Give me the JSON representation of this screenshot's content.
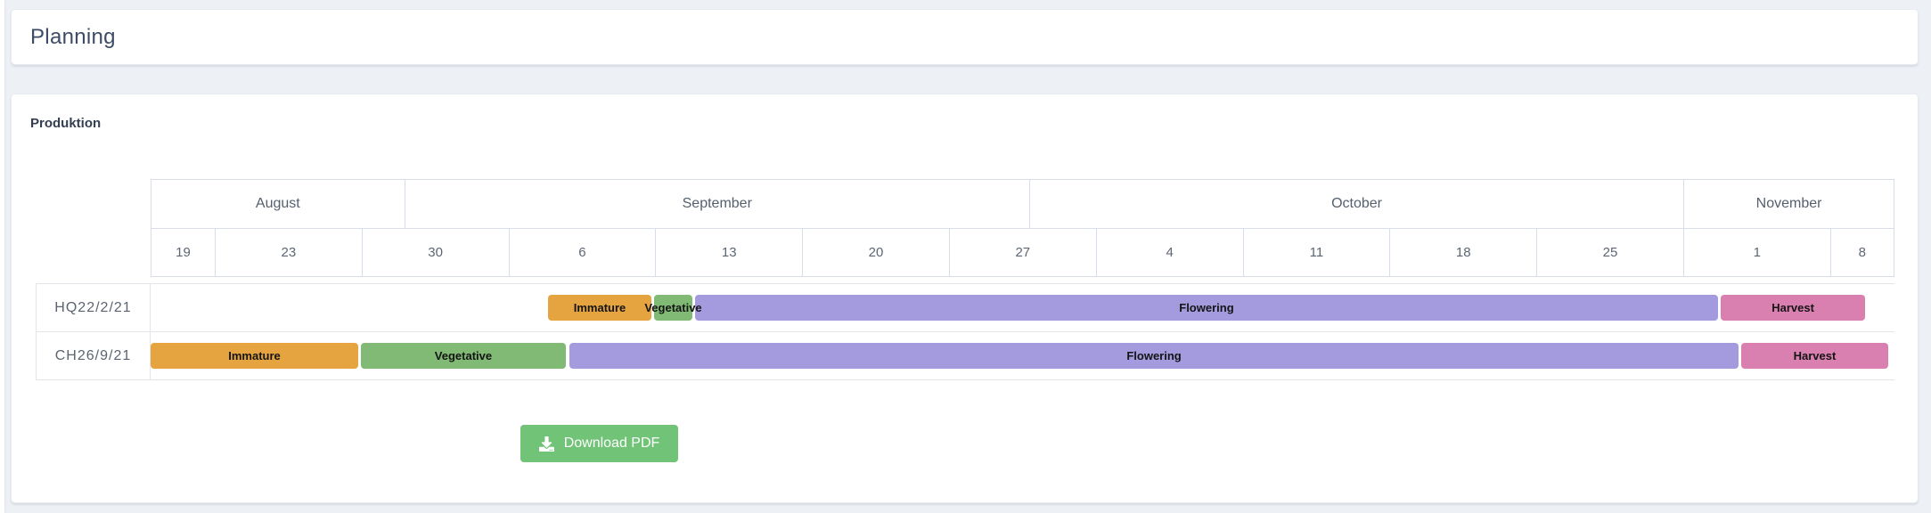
{
  "page": {
    "title": "Planning"
  },
  "panel": {
    "title": "Produktion"
  },
  "gantt": {
    "months": [
      {
        "label": "August",
        "width_pct": 14.56
      },
      {
        "label": "September",
        "width_pct": 35.87
      },
      {
        "label": "October",
        "width_pct": 37.56
      },
      {
        "label": "November",
        "width_pct": 12.01
      }
    ],
    "weeks": [
      {
        "label": "19",
        "width_pct": 3.68
      },
      {
        "label": "23",
        "width_pct": 8.43
      },
      {
        "label": "30",
        "width_pct": 8.43
      },
      {
        "label": "6",
        "width_pct": 8.43
      },
      {
        "label": "13",
        "width_pct": 8.43
      },
      {
        "label": "20",
        "width_pct": 8.43
      },
      {
        "label": "27",
        "width_pct": 8.43
      },
      {
        "label": "4",
        "width_pct": 8.43
      },
      {
        "label": "11",
        "width_pct": 8.43
      },
      {
        "label": "18",
        "width_pct": 8.43
      },
      {
        "label": "25",
        "width_pct": 8.43
      },
      {
        "label": "1",
        "width_pct": 8.43
      },
      {
        "label": "8",
        "width_pct": 3.59
      }
    ],
    "rows": [
      {
        "label": "HQ22/2/21",
        "phases": [
          {
            "name": "Immature",
            "left_pct": 22.79,
            "width_pct": 5.93
          },
          {
            "name": "Vegetative",
            "left_pct": 28.87,
            "width_pct": 2.2
          },
          {
            "name": "Flowering",
            "left_pct": 31.22,
            "width_pct": 58.66
          },
          {
            "name": "Harvest",
            "left_pct": 90.04,
            "width_pct": 8.28
          }
        ]
      },
      {
        "label": "CH26/9/21",
        "phases": [
          {
            "name": "Immature",
            "left_pct": 0,
            "width_pct": 11.91
          },
          {
            "name": "Vegetative",
            "left_pct": 12.06,
            "width_pct": 11.75
          },
          {
            "name": "Flowering",
            "left_pct": 24.02,
            "width_pct": 67.04
          },
          {
            "name": "Harvest",
            "left_pct": 91.21,
            "width_pct": 8.43
          }
        ]
      }
    ],
    "phase_colors": {
      "Immature": "#e5a440",
      "Vegetative": "#80ba74",
      "Flowering": "#a39bde",
      "Harvest": "#da80b1"
    }
  },
  "actions": {
    "download_pdf_label": "Download PDF"
  },
  "colors": {
    "accent_green": "#70c377",
    "page_bg": "#edf1f6"
  }
}
